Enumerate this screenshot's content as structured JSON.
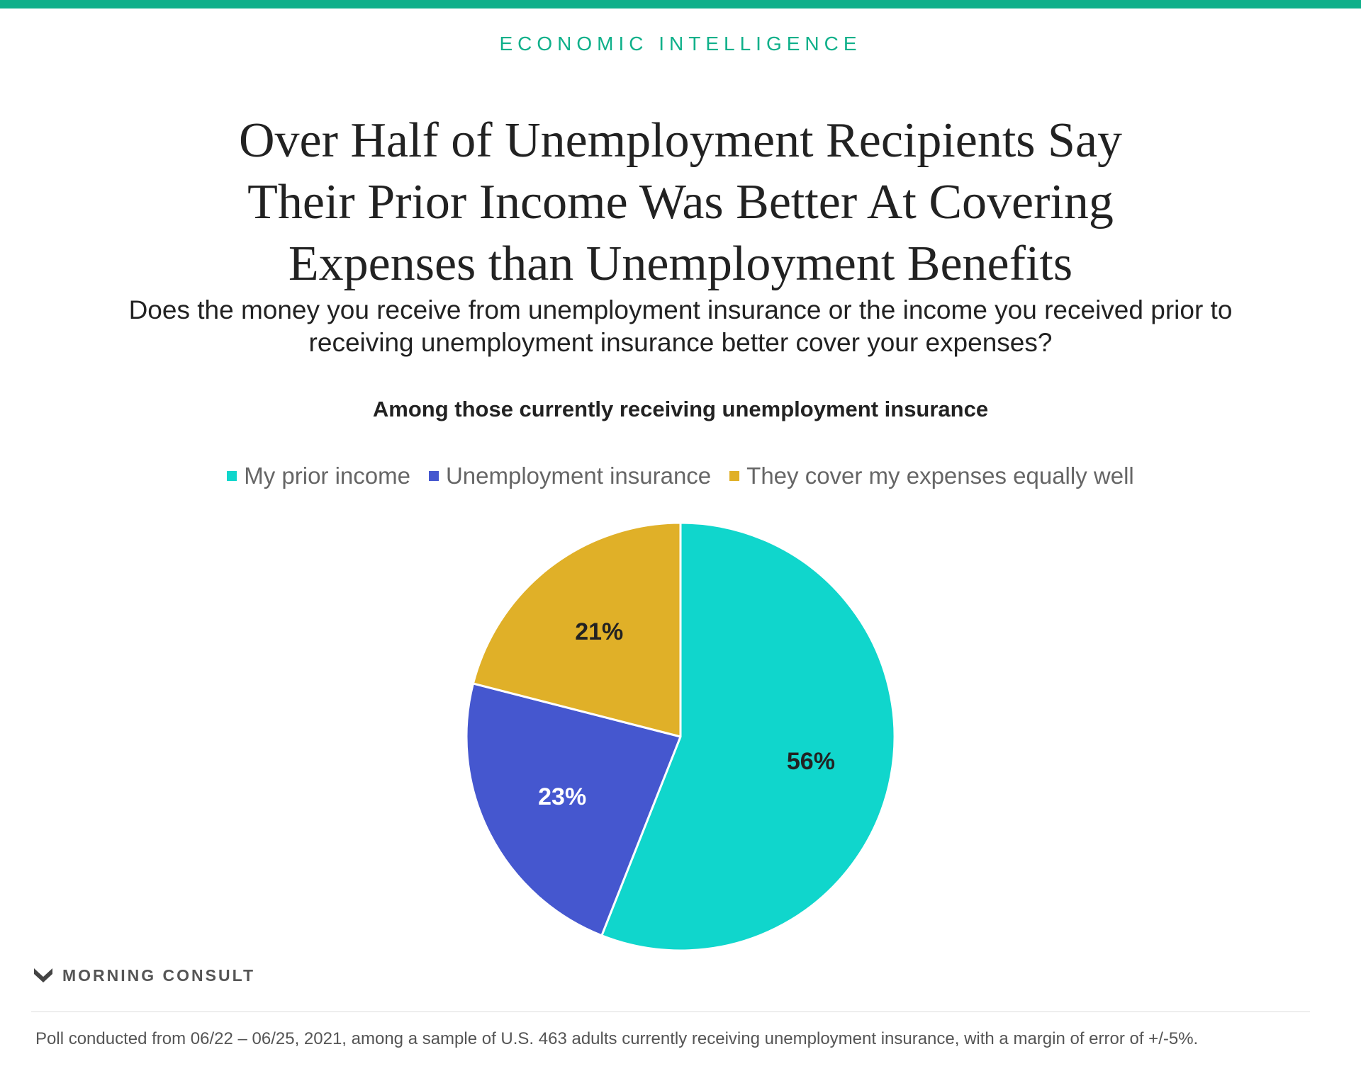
{
  "kicker": "ECONOMIC INTELLIGENCE",
  "title": "Over Half of Unemployment Recipients Say Their Prior Income Was Better At Covering Expenses than Unemployment Benefits",
  "question": "Does the money you receive from unemployment insurance or the income you received prior to receiving unemployment insurance better cover your expenses?",
  "brand": "MORNING CONSULT",
  "footnote": "Poll conducted from 06/22 – 06/25, 2021, among a sample of U.S. 463 adults currently receiving unemployment insurance, with a margin of error of +/-5%.",
  "colors": {
    "accent": "#0fb08a",
    "my_prior_income": "#10d6cc",
    "unemployment_insurance": "#4557cf",
    "equally_well": "#e0b028"
  },
  "chart_data": {
    "type": "pie",
    "title": "Among those currently receiving unemployment insurance",
    "legend_position": "top",
    "slices": [
      {
        "label": "My prior income",
        "value": 56,
        "display": "56%",
        "color": "#10d6cc",
        "label_color": "#222222"
      },
      {
        "label": "Unemployment insurance",
        "value": 23,
        "display": "23%",
        "color": "#4557cf",
        "label_color": "#ffffff"
      },
      {
        "label": "They cover my expenses equally well",
        "value": 21,
        "display": "21%",
        "color": "#e0b028",
        "label_color": "#222222"
      }
    ]
  }
}
